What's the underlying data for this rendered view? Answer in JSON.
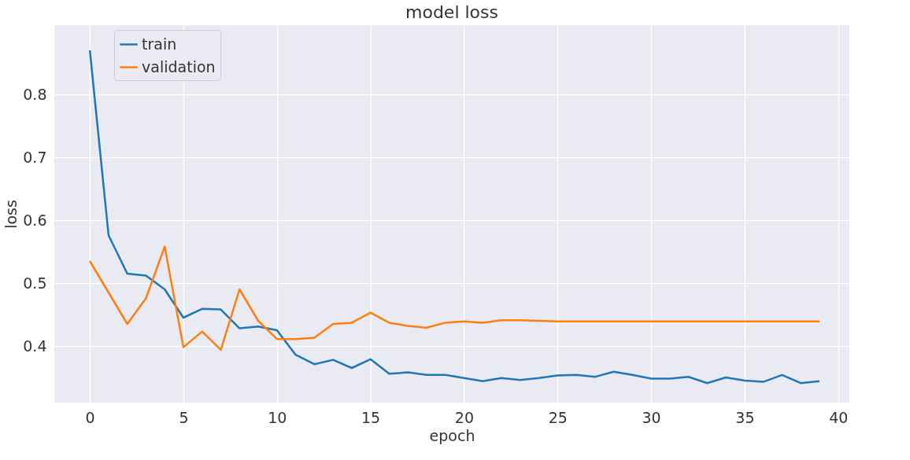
{
  "chart_data": {
    "type": "line",
    "title": "model loss",
    "xlabel": "epoch",
    "ylabel": "loss",
    "x": [
      0,
      1,
      2,
      3,
      4,
      5,
      6,
      7,
      8,
      9,
      10,
      11,
      12,
      13,
      14,
      15,
      16,
      17,
      18,
      19,
      20,
      21,
      22,
      23,
      24,
      25,
      26,
      27,
      28,
      29,
      30,
      31,
      32,
      33,
      34,
      35,
      36,
      37,
      38,
      39
    ],
    "series": [
      {
        "name": "train",
        "color": "#1f77b4",
        "values": [
          0.87,
          0.576,
          0.515,
          0.512,
          0.49,
          0.445,
          0.459,
          0.458,
          0.428,
          0.431,
          0.425,
          0.386,
          0.371,
          0.378,
          0.365,
          0.379,
          0.356,
          0.358,
          0.354,
          0.354,
          0.349,
          0.344,
          0.349,
          0.346,
          0.349,
          0.353,
          0.354,
          0.351,
          0.359,
          0.354,
          0.348,
          0.348,
          0.351,
          0.341,
          0.35,
          0.345,
          0.343,
          0.354,
          0.341,
          0.344
        ]
      },
      {
        "name": "validation",
        "color": "#ff7f0e",
        "values": [
          0.535,
          0.485,
          0.435,
          0.476,
          0.558,
          0.398,
          0.423,
          0.394,
          0.49,
          0.44,
          0.411,
          0.411,
          0.413,
          0.435,
          0.437,
          0.453,
          0.437,
          0.432,
          0.429,
          0.437,
          0.439,
          0.437,
          0.441,
          0.441,
          0.44,
          0.439,
          0.439,
          0.439,
          0.439,
          0.439,
          0.439,
          0.439,
          0.439,
          0.439,
          0.439,
          0.439,
          0.439,
          0.439,
          0.439,
          0.439
        ]
      }
    ],
    "xlim": [
      -1.9,
      40.6
    ],
    "ylim": [
      0.31,
      0.91
    ],
    "xticks": [
      0,
      5,
      10,
      15,
      20,
      25,
      30,
      35,
      40
    ],
    "yticks": [
      0.4,
      0.5,
      0.6,
      0.7,
      0.8
    ],
    "grid": true,
    "legend": "top left",
    "line_style": "solid",
    "marker": "none"
  }
}
